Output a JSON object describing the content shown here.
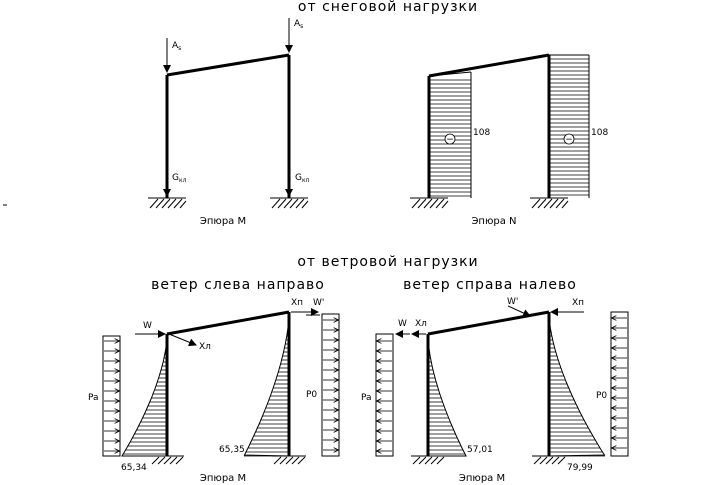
{
  "snow": {
    "title": "от снеговой нагрузки",
    "moment_caption": "Эпюра М",
    "normal_caption": "Эпюра N",
    "force_left_top": "A",
    "force_left_top_sub": "s",
    "force_right_top": "A",
    "force_right_top_sub": "s",
    "force_left_bottom": "G",
    "force_left_bottom_sub": "кл",
    "force_right_bottom": "G",
    "force_right_bottom_sub": "кп",
    "n_left_value": "108",
    "n_right_value": "108",
    "sign_minus": "−"
  },
  "wind": {
    "title": "от ветровой нагрузки",
    "left_case_title": "ветер слева направо",
    "right_case_title": "ветер справа налево",
    "caption_left": "Эпюра М",
    "caption_right": "Эпюра М",
    "left_case": {
      "w_label": "W",
      "xl_label": "Xл",
      "xp_label": "Xп",
      "wprime_label": "W'",
      "pa_label": "Pa",
      "po_label": "P0",
      "m_left_value": "65,34",
      "m_right_value": "65,35"
    },
    "right_case": {
      "w_label": "W",
      "xl_label": "Xл",
      "xp_label": "Xп",
      "wprime_label": "W'",
      "pa_label": "Pa",
      "po_label": "P0",
      "m_left_value": "57,01",
      "m_right_value": "79,99"
    }
  }
}
